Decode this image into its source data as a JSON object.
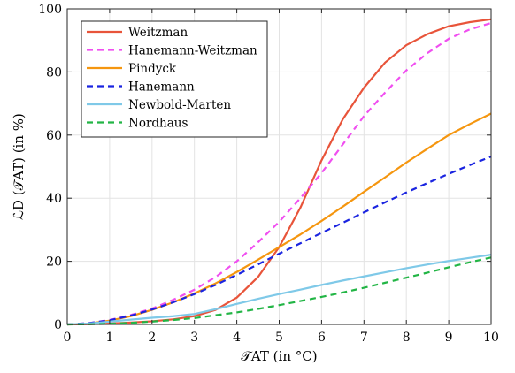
{
  "chart_data": {
    "type": "line",
    "xlabel": "𝒯AT (in °C)",
    "ylabel": "ℒD (𝒯AT) (in %)",
    "xlim": [
      0,
      10
    ],
    "ylim": [
      0,
      100
    ],
    "xticks": [
      "0",
      "1",
      "2",
      "3",
      "4",
      "5",
      "6",
      "7",
      "8",
      "9",
      "10"
    ],
    "yticks": [
      "0",
      "20",
      "40",
      "60",
      "80",
      "100"
    ],
    "grid": true,
    "legend_position": "top-left",
    "series": [
      {
        "name": "Weitzman",
        "style": "solid",
        "color": "#e8543a",
        "x": [
          0,
          0.5,
          1,
          1.5,
          2,
          2.5,
          3,
          3.5,
          4,
          4.5,
          5,
          5.5,
          6,
          6.5,
          7,
          7.5,
          8,
          8.5,
          9,
          9.5,
          10
        ],
        "y": [
          0,
          0.1,
          0.3,
          0.6,
          1.0,
          1.6,
          2.6,
          4.6,
          8.5,
          15,
          24.5,
          37,
          52,
          65,
          75,
          83,
          88.5,
          92,
          94.5,
          95.8,
          96.7
        ]
      },
      {
        "name": "Hanemann-Weitzman",
        "style": "dashed",
        "color": "#f04ff0",
        "x": [
          0,
          0.5,
          1,
          1.5,
          2,
          2.5,
          3,
          3.5,
          4,
          4.5,
          5,
          5.5,
          6,
          6.5,
          7,
          7.5,
          8,
          8.5,
          9,
          9.5,
          10
        ],
        "y": [
          0,
          0.4,
          1.4,
          3.0,
          5.0,
          7.8,
          11,
          15,
          20,
          26,
          32.5,
          40,
          48,
          57,
          66,
          73.5,
          80.5,
          86,
          90.5,
          93.5,
          95.5
        ]
      },
      {
        "name": "Pindyck",
        "style": "solid",
        "color": "#f5960f",
        "x": [
          0,
          0.5,
          1,
          1.5,
          2,
          2.5,
          3,
          3.5,
          4,
          4.5,
          5,
          5.5,
          6,
          6.5,
          7,
          7.5,
          8,
          8.5,
          9,
          9.5,
          10
        ],
        "y": [
          0,
          0.3,
          1.2,
          2.6,
          4.6,
          7.0,
          9.8,
          13,
          16.6,
          20.5,
          24.5,
          28.5,
          32.8,
          37.3,
          42,
          46.6,
          51.3,
          55.7,
          60,
          63.5,
          66.8
        ]
      },
      {
        "name": "Hanemann",
        "style": "dashed",
        "color": "#1a24e0",
        "x": [
          0,
          0.5,
          1,
          1.5,
          2,
          2.5,
          3,
          3.5,
          4,
          4.5,
          5,
          5.5,
          6,
          6.5,
          7,
          7.5,
          8,
          8.5,
          9,
          9.5,
          10
        ],
        "y": [
          0,
          0.4,
          1.3,
          2.8,
          4.7,
          7.0,
          9.6,
          12.5,
          15.7,
          19,
          22.4,
          25.7,
          29,
          32.2,
          35.5,
          38.7,
          41.8,
          44.8,
          47.7,
          50.5,
          53.2
        ]
      },
      {
        "name": "Newbold-Marten",
        "style": "solid",
        "color": "#7fc9e8",
        "x": [
          0,
          0.5,
          1,
          1.5,
          2,
          2.5,
          3,
          3.5,
          4,
          4.5,
          5,
          5.5,
          6,
          6.5,
          7,
          7.5,
          8,
          8.5,
          9,
          9.5,
          10
        ],
        "y": [
          0,
          0.3,
          0.9,
          1.5,
          2.1,
          2.6,
          3.3,
          4.8,
          6.5,
          8.1,
          9.6,
          11,
          12.5,
          13.9,
          15.2,
          16.5,
          17.8,
          19,
          20.1,
          21.1,
          22.1
        ]
      },
      {
        "name": "Nordhaus",
        "style": "dashed",
        "color": "#22b545",
        "x": [
          0,
          0.5,
          1,
          1.5,
          2,
          2.5,
          3,
          3.5,
          4,
          4.5,
          5,
          5.5,
          6,
          6.5,
          7,
          7.5,
          8,
          8.5,
          9,
          9.5,
          10
        ],
        "y": [
          0,
          0.05,
          0.2,
          0.5,
          0.9,
          1.4,
          2.0,
          2.9,
          3.8,
          4.9,
          6.1,
          7.4,
          8.7,
          10.1,
          11.6,
          13.2,
          14.8,
          16.4,
          18.1,
          19.7,
          21.2
        ]
      }
    ]
  }
}
